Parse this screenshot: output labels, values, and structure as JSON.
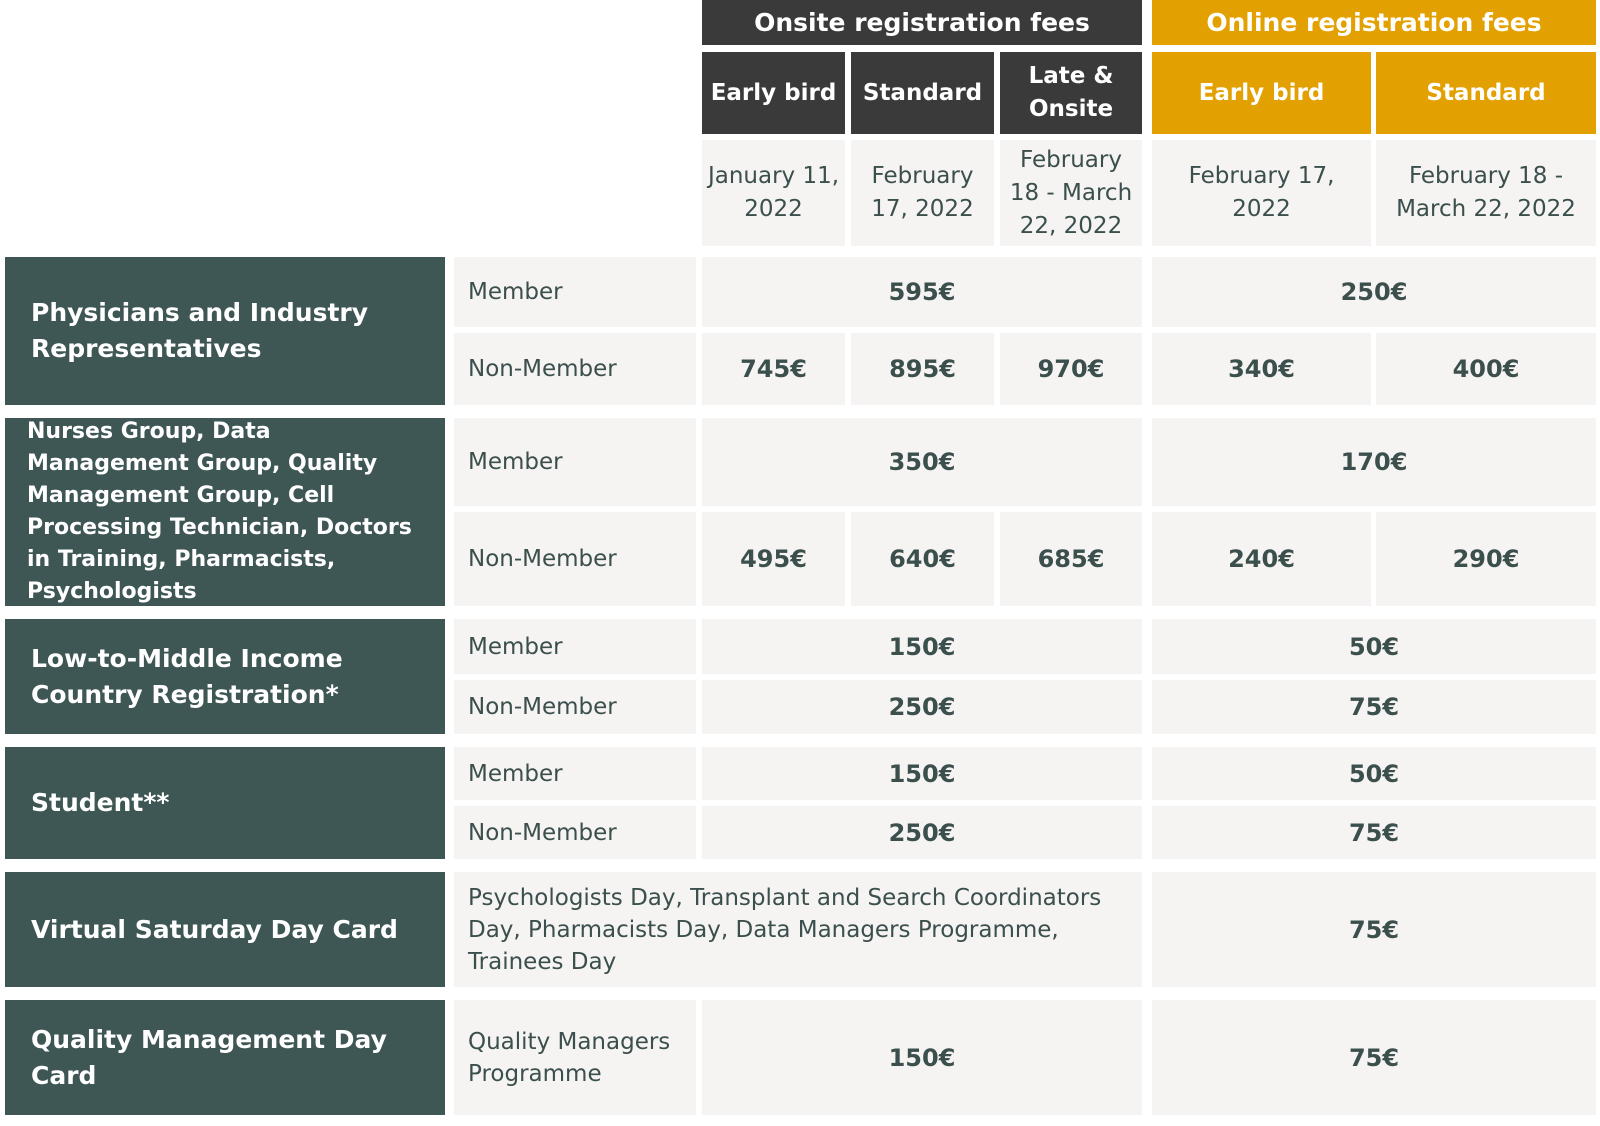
{
  "header": {
    "onsite_title": "Onsite registration fees",
    "online_title": "Online registration fees",
    "onsite_cols": [
      "Early bird",
      "Standard",
      "Late & Onsite"
    ],
    "online_cols": [
      "Early bird",
      "Standard"
    ],
    "onsite_dates": [
      "January 11, 2022",
      "February 17, 2022",
      "February 18 - March 22, 2022"
    ],
    "online_dates": [
      "February 17, 2022",
      "February 18 - March 22, 2022"
    ]
  },
  "rows": {
    "physicians": {
      "category": "Physicians and Industry Representatives",
      "member_label": "Member",
      "member_onsite": "595€",
      "member_online": "250€",
      "nonmember_label": "Non-Member",
      "nonmember_onsite": [
        "745€",
        "895€",
        "970€"
      ],
      "nonmember_online": [
        "340€",
        "400€"
      ]
    },
    "nurses": {
      "category": "Nurses Group, Data Management Group, Quality Management Group, Cell Processing Technician, Doctors in Training, Pharmacists, Psychologists",
      "member_label": "Member",
      "member_onsite": "350€",
      "member_online": "170€",
      "nonmember_label": "Non-Member",
      "nonmember_onsite": [
        "495€",
        "640€",
        "685€"
      ],
      "nonmember_online": [
        "240€",
        "290€"
      ]
    },
    "lmic": {
      "category": "Low-to-Middle Income Country Registration*",
      "member_label": "Member",
      "member_onsite": "150€",
      "member_online": "50€",
      "nonmember_label": "Non-Member",
      "nonmember_onsite": "250€",
      "nonmember_online": "75€"
    },
    "student": {
      "category": "Student**",
      "member_label": "Member",
      "member_onsite": "150€",
      "member_online": "50€",
      "nonmember_label": "Non-Member",
      "nonmember_onsite": "250€",
      "nonmember_online": "75€"
    },
    "saturday": {
      "category": "Virtual Saturday Day Card",
      "description": "Psychologists Day, Transplant and Search Coordinators Day, Pharmacists Day, Data Managers Programme, Trainees Day",
      "online": "75€"
    },
    "quality": {
      "category": "Quality Management Day Card",
      "description": "Quality Managers Programme",
      "onsite": "150€",
      "online": "75€"
    }
  }
}
